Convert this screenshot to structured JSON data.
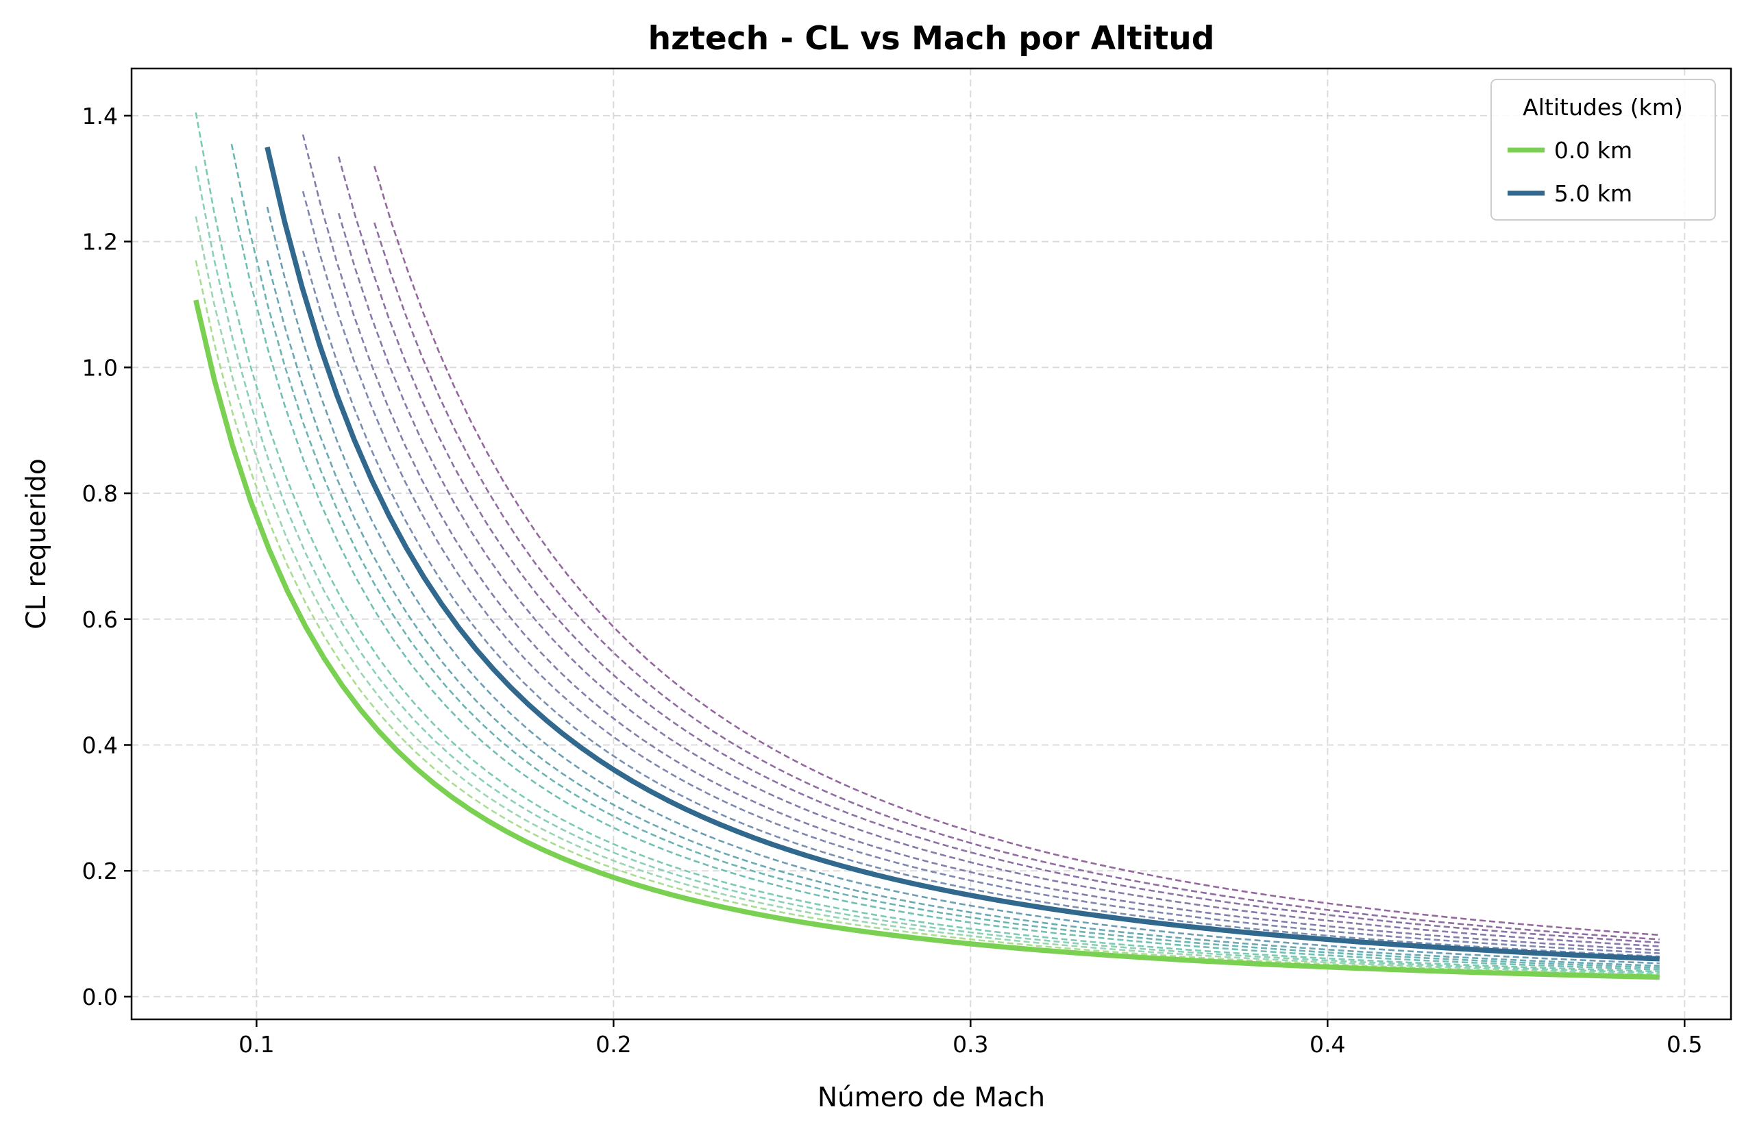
{
  "chart_data": {
    "type": "line",
    "title": "hztech - CL vs Mach por Altitud",
    "xlabel": "Número de Mach",
    "ylabel": "CL requerido",
    "xlim": [
      0.065,
      0.513
    ],
    "ylim": [
      -0.036,
      1.475
    ],
    "xticks": [
      0.1,
      0.2,
      0.3,
      0.4,
      0.5
    ],
    "xtick_labels": [
      "0.1",
      "0.2",
      "0.3",
      "0.4",
      "0.5"
    ],
    "yticks": [
      0.0,
      0.2,
      0.4,
      0.6,
      0.8,
      1.0,
      1.2,
      1.4
    ],
    "ytick_labels": [
      "0.0",
      "0.2",
      "0.4",
      "0.6",
      "0.8",
      "1.0",
      "1.2",
      "1.4"
    ],
    "grid": true,
    "legend": {
      "title": "Altitudes (km)",
      "placement": "top-right",
      "entries": [
        "0.0 km",
        "5.0 km"
      ]
    },
    "x_end": 0.493,
    "series": [
      {
        "name": "0.0 km",
        "start_mach": 0.083,
        "cl_at_start": 1.107,
        "cl_at_end": 0.031,
        "color": "#7ad151",
        "style": "solid",
        "emphasis": true
      },
      {
        "start_mach": 0.083,
        "cl_at_start": 1.17,
        "cl_at_end": 0.034,
        "color": "#a0da84",
        "style": "dashed"
      },
      {
        "start_mach": 0.083,
        "cl_at_start": 1.24,
        "cl_at_end": 0.036,
        "color": "#8ed2a8",
        "style": "dashed"
      },
      {
        "start_mach": 0.083,
        "cl_at_start": 1.32,
        "cl_at_end": 0.038,
        "color": "#7ccbae",
        "style": "dashed"
      },
      {
        "start_mach": 0.083,
        "cl_at_start": 1.405,
        "cl_at_end": 0.04,
        "color": "#6ec4ac",
        "style": "dashed"
      },
      {
        "start_mach": 0.093,
        "cl_at_start": 1.27,
        "cl_at_end": 0.043,
        "color": "#62b8aa",
        "style": "dashed"
      },
      {
        "start_mach": 0.093,
        "cl_at_start": 1.355,
        "cl_at_end": 0.046,
        "color": "#5aacab",
        "style": "dashed"
      },
      {
        "start_mach": 0.103,
        "cl_at_start": 1.17,
        "cl_at_end": 0.049,
        "color": "#5a9fac",
        "style": "dashed"
      },
      {
        "start_mach": 0.103,
        "cl_at_start": 1.255,
        "cl_at_end": 0.053,
        "color": "#5b93ad",
        "style": "dashed"
      },
      {
        "name": "5.0 km",
        "start_mach": 0.103,
        "cl_at_start": 1.35,
        "cl_at_end": 0.06,
        "color": "#31688e",
        "style": "solid",
        "emphasis": true
      },
      {
        "start_mach": 0.113,
        "cl_at_start": 1.185,
        "cl_at_end": 0.064,
        "color": "#6a82a9",
        "style": "dashed"
      },
      {
        "start_mach": 0.113,
        "cl_at_start": 1.28,
        "cl_at_end": 0.069,
        "color": "#7179a6",
        "style": "dashed"
      },
      {
        "start_mach": 0.113,
        "cl_at_start": 1.37,
        "cl_at_end": 0.074,
        "color": "#776fa3",
        "style": "dashed"
      },
      {
        "start_mach": 0.123,
        "cl_at_start": 1.245,
        "cl_at_end": 0.08,
        "color": "#7c69a0",
        "style": "dashed"
      },
      {
        "start_mach": 0.123,
        "cl_at_start": 1.335,
        "cl_at_end": 0.086,
        "color": "#80629c",
        "style": "dashed"
      },
      {
        "start_mach": 0.133,
        "cl_at_start": 1.23,
        "cl_at_end": 0.091,
        "color": "#845c98",
        "style": "dashed"
      },
      {
        "start_mach": 0.133,
        "cl_at_start": 1.32,
        "cl_at_end": 0.098,
        "color": "#885694",
        "style": "dashed"
      }
    ]
  }
}
